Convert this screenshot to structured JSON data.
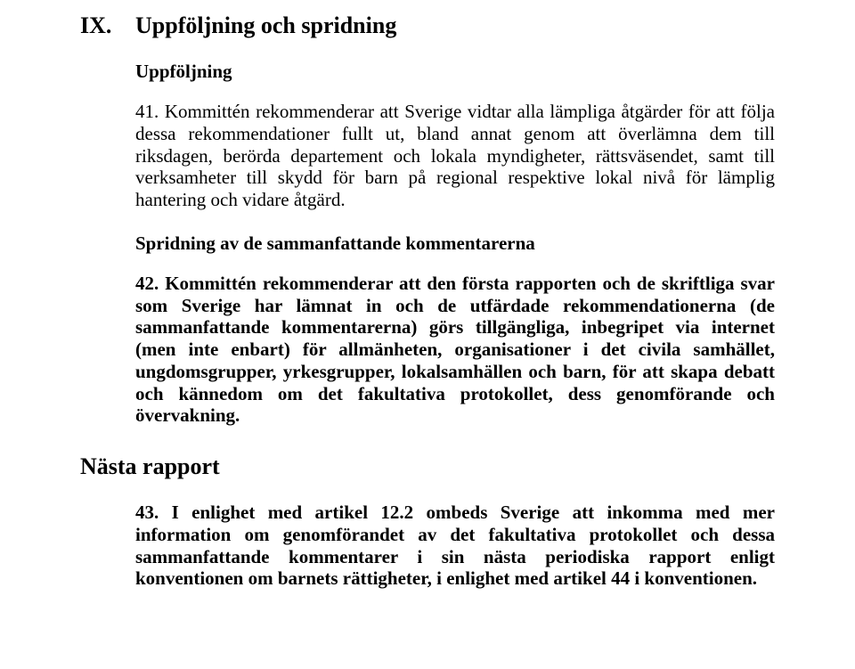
{
  "section": {
    "number": "IX.",
    "title": "Uppföljning och spridning"
  },
  "sub1": {
    "title": "Uppföljning",
    "para41": "41. Kommittén rekommenderar att Sverige vidtar alla lämpliga åtgärder för att följa dessa rekommendationer fullt ut, bland annat genom att överlämna dem till riksdagen, berörda departement och lokala myndigheter, rättsväsendet, samt till verksamheter till skydd för barn på regional respektive lokal nivå för lämplig hantering och vidare åtgärd."
  },
  "sub2": {
    "title": "Spridning av de sammanfattande kommentarerna",
    "para42": "42. Kommittén rekommenderar att den första rapporten och de skriftliga svar som Sverige har lämnat in och de utfärdade rekommendationerna (de sammanfattande kommentarerna) görs tillgängliga, inbegripet via internet (men inte enbart) för allmänheten, organisationer i det civila samhället, ungdomsgrupper, yrkesgrupper, lokalsamhällen och barn, för att skapa debatt och kännedom om det fakultativa protokollet, dess genomförande och övervakning."
  },
  "nasta": {
    "title": "Nästa rapport",
    "para43": "43. I enlighet med artikel 12.2 ombeds Sverige att inkomma med mer information om genomförandet av det fakultativa protokollet och dessa sammanfattande kommentarer i sin nästa periodiska rapport enligt konventionen om barnets rättigheter, i enlighet med artikel 44 i konventionen."
  },
  "colors": {
    "text": "#000000",
    "background": "#ffffff"
  },
  "fonts": {
    "family": "Times New Roman",
    "heading_size_pt": 20,
    "body_size_pt": 16
  }
}
